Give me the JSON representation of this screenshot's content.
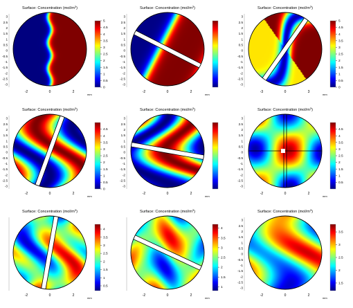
{
  "colors": {
    "jet": [
      "#00007f",
      "#0000ff",
      "#007fff",
      "#00ffff",
      "#7fff7f",
      "#ffff00",
      "#ff7f00",
      "#ff0000",
      "#7f0000"
    ],
    "outline": "#000000",
    "slit_fill": "#ffffff"
  },
  "chart_data": [
    {
      "type": "heatmap",
      "title_main": "Surface: Concentration (mol/m",
      "title_sup": "3",
      "title_close": ")",
      "xlabel": "mm",
      "x_ticks": [
        "-2",
        "0",
        "2"
      ],
      "y_ticks": [
        "3",
        "2.5",
        "2",
        "1.5",
        "1",
        "0.5",
        "0",
        "-0.5",
        "-1",
        "-1.5",
        "-2",
        "-2.5",
        "-3"
      ],
      "colorbar_ticks": [
        "5",
        "4.5",
        "4",
        "3.5",
        "3",
        "2.5",
        "2",
        "1.5",
        "1",
        "0.5",
        "0"
      ],
      "colorbar_range": [
        0,
        5
      ],
      "mixer": "unbaffled",
      "pattern": "split"
    },
    {
      "type": "heatmap",
      "title_main": "Surface: Concentration (mol/m",
      "title_sup": "3",
      "title_close": ")",
      "xlabel": "mm",
      "x_ticks": [
        "-2",
        "0",
        "2"
      ],
      "y_ticks": [
        "3",
        "2.5",
        "2",
        "1.5",
        "1",
        "0.5",
        "0",
        "-0.5",
        "-1",
        "-1.5",
        "-2",
        "-2.5",
        "-3"
      ],
      "colorbar_ticks": [],
      "colorbar_range": [
        0,
        5
      ],
      "mixer": "slit",
      "slit_angle_deg": -27,
      "pattern": "bands"
    },
    {
      "type": "heatmap",
      "title_main": "Surface: Concentration (mol/m",
      "title_sup": "3",
      "title_close": ")",
      "xlabel": "mm",
      "x_ticks": [
        "-3",
        "0",
        "3"
      ],
      "y_ticks": [
        "3",
        "2.5",
        "2",
        "1.5",
        "1",
        "0.5",
        "0",
        "-0.5",
        "-1",
        "-1.5",
        "-2",
        "-2.5",
        "-3"
      ],
      "colorbar_ticks": [
        "5",
        "4.5",
        "4",
        "3.5",
        "3",
        "2.5",
        "2",
        "1.5",
        "1",
        "0.5",
        "0"
      ],
      "colorbar_range": [
        0,
        5
      ],
      "mixer": "slit",
      "slit_angle_deg": 55,
      "pattern": "S"
    },
    {
      "type": "heatmap",
      "title_main": "Surface: Concentration (mol/m",
      "title_sup": "3",
      "title_close": ")",
      "xlabel": "mm",
      "x_ticks": [
        "-2",
        "0",
        "2"
      ],
      "y_ticks": [
        "3",
        "2.5",
        "2",
        "1.5",
        "1",
        "0.5",
        "0",
        "-0.5",
        "-1",
        "-1.5",
        "-2",
        "-2.5",
        "-3"
      ],
      "colorbar_ticks": [
        "4.5",
        "4",
        "3.5",
        "3",
        "2.5",
        "2",
        "1.5",
        "1",
        "0.5",
        "0"
      ],
      "colorbar_range": [
        0,
        5
      ],
      "mixer": "slit",
      "slit_angle_deg": 70,
      "pattern": "swirl1"
    },
    {
      "type": "heatmap",
      "title_main": "Surface: Concentration (mol/m",
      "title_sup": "3",
      "title_close": ")",
      "xlabel": "mm",
      "x_ticks": [
        "-2",
        "0",
        "2"
      ],
      "y_ticks": [
        "3",
        "2.5",
        "2",
        "1.5",
        "1",
        "0.5",
        "0",
        "-0.5",
        "-1",
        "-1.5",
        "-2",
        "-2.5",
        "-3"
      ],
      "colorbar_ticks": [],
      "colorbar_range": [
        0,
        5
      ],
      "mixer": "slit",
      "slit_angle_deg": -10,
      "pattern": "swirl2"
    },
    {
      "type": "heatmap",
      "title_main": "Surface: Concentration (mol/m",
      "title_sup": "3",
      "title_close": ")",
      "xlabel": "mm",
      "x_ticks": [
        "-2",
        "0",
        "2"
      ],
      "y_ticks": [
        "3",
        "2.5",
        "2",
        "1.5",
        "1",
        "0.5",
        "0",
        "-0.5",
        "-1",
        "-1.5",
        "-2",
        "-2.5",
        "-3"
      ],
      "colorbar_ticks": [
        "4.5",
        "4",
        "3.5",
        "3",
        "2.5",
        "2",
        "1.5",
        "1",
        "0.5"
      ],
      "colorbar_range": [
        0,
        5
      ],
      "mixer": "cross",
      "pattern": "quad"
    },
    {
      "type": "heatmap",
      "title_main": "Surface: Concentration (mol/m",
      "title_sup": "3",
      "title_close": ")",
      "xlabel": "mm",
      "x_ticks": [
        "-2",
        "0",
        "2"
      ],
      "y_ticks": [],
      "colorbar_ticks": [
        "4",
        "3.5",
        "3",
        "2.5",
        "2",
        "1.5",
        "1",
        "0.5"
      ],
      "colorbar_range": [
        0.2,
        4.3
      ],
      "mixer": "slit",
      "slit_angle_deg": 80,
      "pattern": "mixed1"
    },
    {
      "type": "heatmap",
      "title_main": "Surface: Concentration (mol/m",
      "title_sup": "3",
      "title_close": ")",
      "xlabel": "mm",
      "x_ticks": [
        "-2",
        "0",
        "2"
      ],
      "y_ticks": [],
      "colorbar_ticks": [
        "4",
        "3.5",
        "3",
        "2.5",
        "2",
        "1.5",
        "1"
      ],
      "colorbar_range": [
        0.8,
        4.2
      ],
      "mixer": "slit",
      "slit_angle_deg": -25,
      "pattern": "mixed2"
    },
    {
      "type": "heatmap",
      "title_main": "Surface: Concentration (mol/m",
      "title_sup": "3",
      "title_close": ")",
      "xlabel": "mm",
      "x_ticks": [
        "-2",
        "0",
        "2"
      ],
      "y_ticks": [
        "3",
        "2.5",
        "2",
        "1.5",
        "1",
        "0.5",
        "0",
        "-0.5",
        "-1",
        "-1.5",
        "-2",
        "-2.5",
        "-3"
      ],
      "colorbar_ticks": [
        "3.5",
        "3",
        "2.5",
        "2",
        "1.5"
      ],
      "colorbar_range": [
        1.2,
        3.8
      ],
      "mixer": "none",
      "pattern": "mixed3"
    }
  ]
}
